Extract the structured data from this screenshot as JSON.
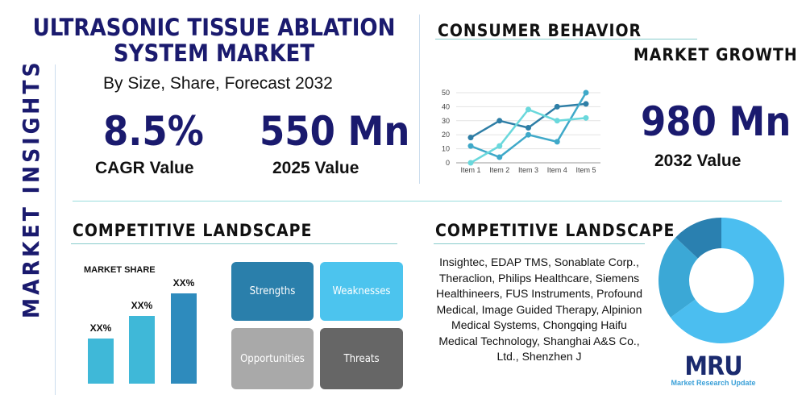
{
  "side_label": "MARKET INSIGHTS",
  "title": "ULTRASONIC TISSUE ABLATION SYSTEM MARKET",
  "subtitle": "By Size, Share, Forecast 2032",
  "stats": [
    {
      "value": "8.5%",
      "label": "CAGR Value"
    },
    {
      "value": "550 Mn",
      "label": "2025 Value"
    },
    {
      "value": "980 Mn",
      "label": "2032 Value"
    }
  ],
  "consumer_title": "CONSUMER BEHAVIOR",
  "growth_title": "MARKET GROWTH",
  "competitive_title_left": "COMPETITIVE LANDSCAPE",
  "competitive_title_right": "COMPETITIVE LANDSCAPE",
  "market_share_label": "MARKET SHARE",
  "swot": [
    "Strengths",
    "Weaknesses",
    "Opportunities",
    "Threats"
  ],
  "companies": "Insightec, EDAP TMS, Sonablate Corp., Theraclion, Philips Healthcare, Siemens Healthineers, FUS Instruments, Profound Medical, Image Guided Therapy, Alpinion Medical Systems, Chongqing Haifu Medical Technology, Shanghai A&S Co., Ltd., Shenzhen J",
  "logo": {
    "mark": "MRU",
    "text": "Market Research Update"
  },
  "colors": {
    "navy": "#1a1a6e",
    "dark": "#2e7ea6",
    "medium": "#3fa9c9",
    "light": "#5ed6dc",
    "sky": "#4bbef0"
  },
  "chart_data": [
    {
      "type": "line",
      "categories": [
        "Item 1",
        "Item 2",
        "Item 3",
        "Item 4",
        "Item 5"
      ],
      "ylim": [
        0,
        50
      ],
      "yticks": [
        0,
        10,
        20,
        30,
        40,
        50
      ],
      "grid": true,
      "series": [
        {
          "values": [
            18,
            30,
            25,
            40,
            42
          ],
          "color": "#2e7ea6"
        },
        {
          "values": [
            12,
            4,
            20,
            15,
            50
          ],
          "color": "#3fa9c9"
        },
        {
          "values": [
            0,
            12,
            38,
            30,
            32
          ],
          "color": "#6ad8dc"
        }
      ]
    },
    {
      "type": "bar",
      "categories": [
        "1",
        "2",
        "3"
      ],
      "value_labels": [
        "XX%",
        "XX%",
        "XX%"
      ],
      "colors": [
        "#3fb8d8",
        "#3fb8d8",
        "#2e8bbd"
      ]
    },
    {
      "type": "pie",
      "donut": true,
      "values": [
        65,
        22,
        13
      ],
      "colors": [
        "#4bbef0",
        "#3ba8d6",
        "#2a80b0"
      ]
    }
  ]
}
